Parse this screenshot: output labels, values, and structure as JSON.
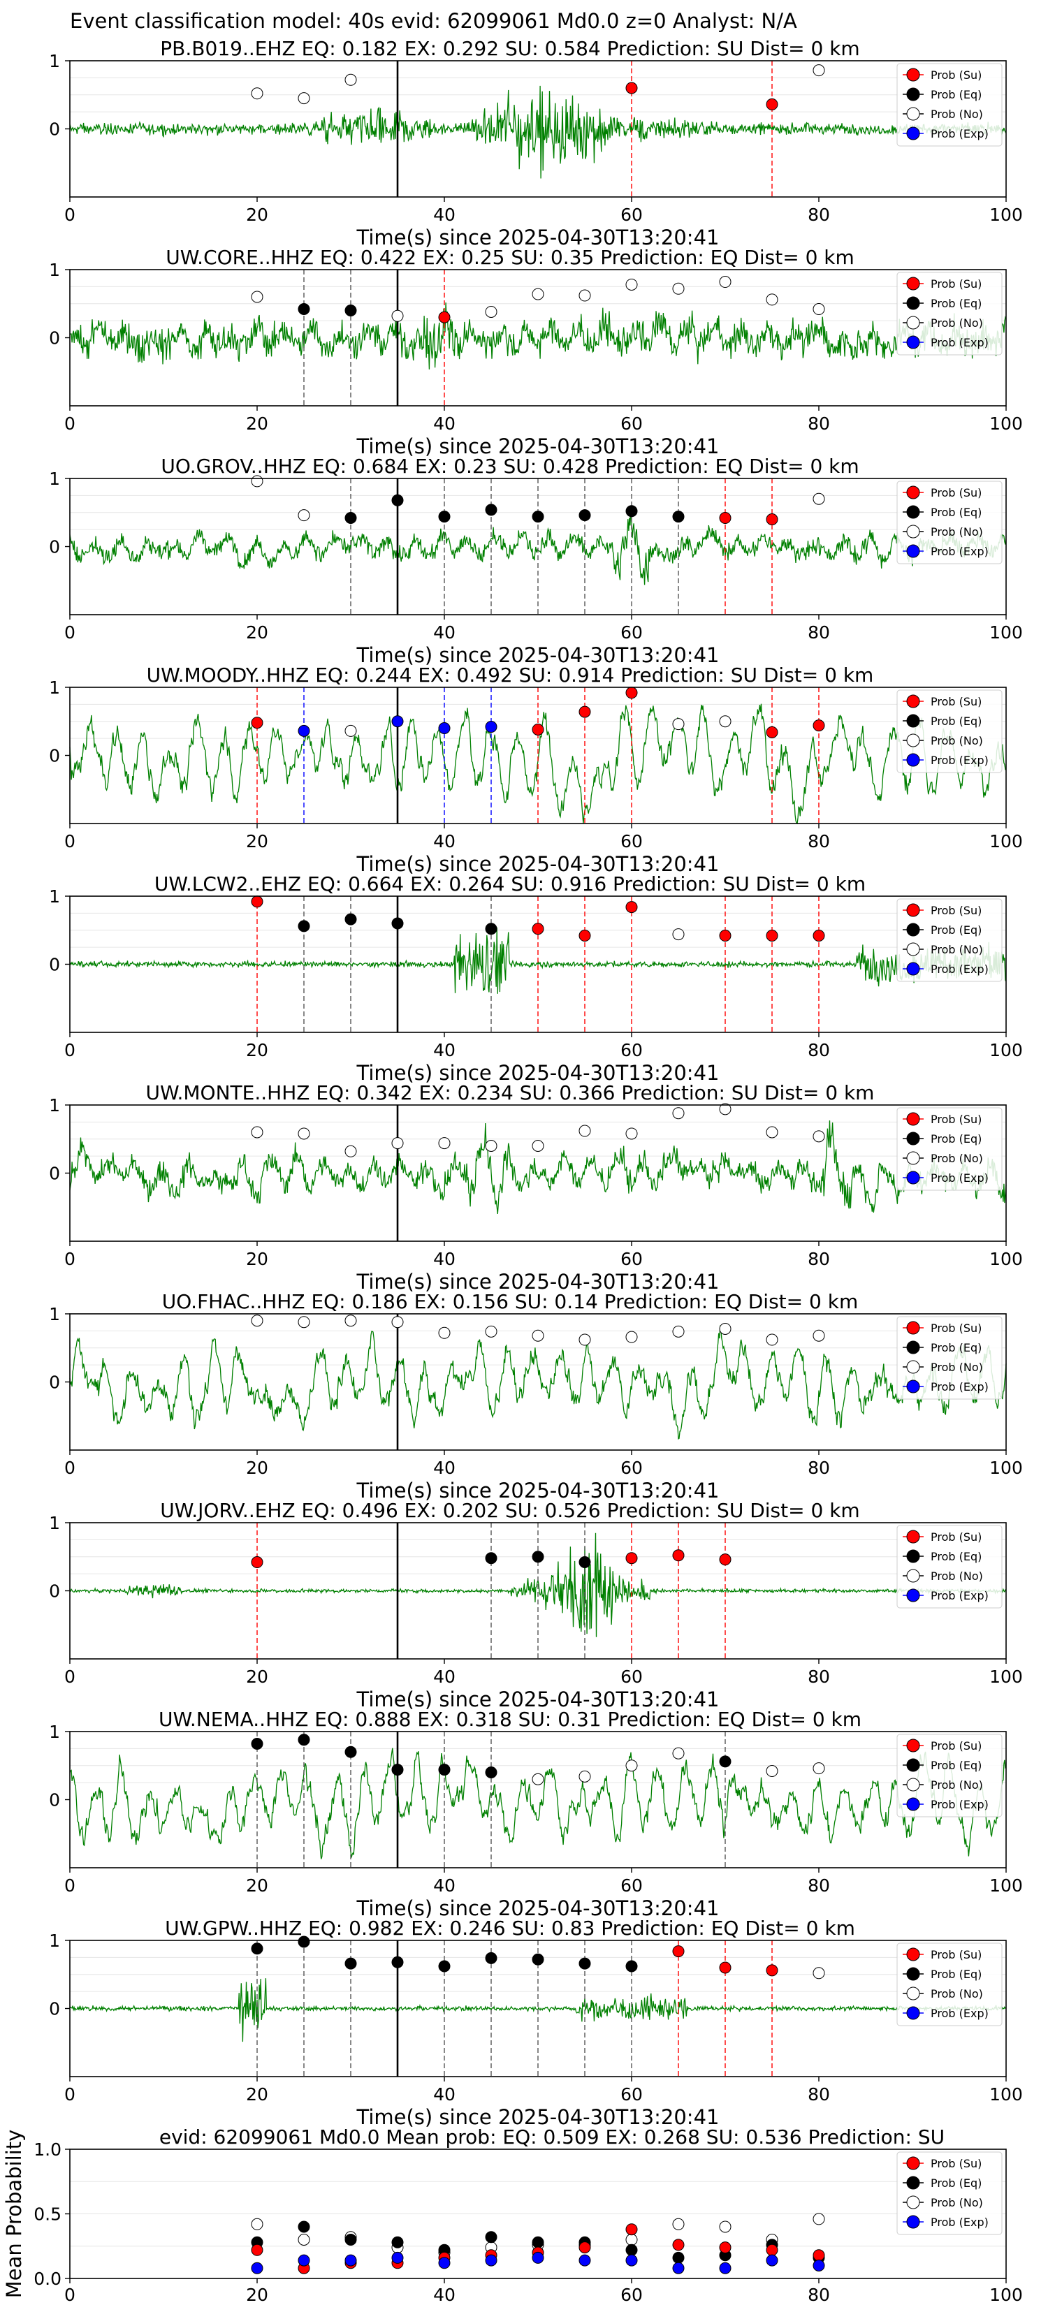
{
  "figure_title": "Event classification model: 40s evid: 62099061 Md0.0 z=0 Analyst: N/A",
  "colors": {
    "waveform": "#008000",
    "su": "#ff0000",
    "eq": "#000000",
    "no": "#ffffff",
    "exp": "#0000ff",
    "arrival": "#000000"
  },
  "legend": [
    "Prob (Su)",
    "Prob (Eq)",
    "Prob (No)",
    "Prob (Exp)"
  ],
  "chart_data": [
    {
      "type": "line+scatter",
      "title": "PB.B019..EHZ   EQ: 0.182  EX: 0.292  SU: 0.584   Prediction: SU    Dist= 0 km",
      "xlabel": "Time(s) since 2025-04-30T13:20:41",
      "xlim": [
        0,
        100
      ],
      "ylim": [
        -1,
        1
      ],
      "xticks": [
        "0",
        "20",
        "40",
        "60",
        "80",
        "100"
      ],
      "yticks": [
        "1",
        "0"
      ],
      "arrival_time": 35,
      "waveform": "high-frequency signal, amplitude ~0.15 rising from 25 s to bursts at ~36 s and 45-58 s (amplitude up to ~1.0), decaying after 60 s",
      "su": [
        [
          60,
          0.6
        ],
        [
          75,
          0.36
        ]
      ],
      "eq": [],
      "no": [
        [
          20,
          0.52
        ],
        [
          25,
          0.45
        ],
        [
          30,
          0.72
        ],
        [
          80,
          0.86
        ]
      ],
      "exp": [],
      "legend_loc": "upper right"
    },
    {
      "type": "line+scatter",
      "title": "UW.CORE..HHZ   EQ: 0.422  EX: 0.25  SU: 0.35   Prediction: EQ    Dist= 0 km",
      "xlabel": "Time(s) since 2025-04-30T13:20:41",
      "xlim": [
        0,
        100
      ],
      "ylim": [
        -1,
        1
      ],
      "xticks": [
        "0",
        "20",
        "40",
        "60",
        "80",
        "100"
      ],
      "yticks": [
        "1",
        "0"
      ],
      "arrival_time": 35,
      "waveform": "noisy broadband signal throughout, amplitude ~0.5",
      "su": [
        [
          40,
          0.3
        ]
      ],
      "eq": [
        [
          25,
          0.42
        ],
        [
          30,
          0.4
        ]
      ],
      "no": [
        [
          20,
          0.6
        ],
        [
          35,
          0.32
        ],
        [
          45,
          0.38
        ],
        [
          50,
          0.64
        ],
        [
          55,
          0.62
        ],
        [
          60,
          0.78
        ],
        [
          65,
          0.72
        ],
        [
          70,
          0.82
        ],
        [
          75,
          0.56
        ],
        [
          80,
          0.42
        ]
      ],
      "exp": [],
      "legend_loc": "upper right"
    },
    {
      "type": "line+scatter",
      "title": "UO.GROV..HHZ   EQ: 0.684  EX: 0.23  SU: 0.428   Prediction: EQ    Dist= 0 km",
      "xlabel": "Time(s) since 2025-04-30T13:20:41",
      "xlim": [
        0,
        100
      ],
      "ylim": [
        -1,
        1
      ],
      "xticks": [
        "0",
        "20",
        "40",
        "60",
        "80",
        "100"
      ],
      "yticks": [
        "1",
        "0"
      ],
      "arrival_time": 35,
      "waveform": "noisy signal, amplitude ~0.35, with larger spikes near 60 s",
      "su": [
        [
          70,
          0.42
        ],
        [
          75,
          0.4
        ]
      ],
      "eq": [
        [
          30,
          0.42
        ],
        [
          35,
          0.68
        ],
        [
          40,
          0.44
        ],
        [
          45,
          0.54
        ],
        [
          50,
          0.44
        ],
        [
          55,
          0.46
        ],
        [
          60,
          0.52
        ],
        [
          65,
          0.44
        ]
      ],
      "no": [
        [
          20,
          0.96
        ],
        [
          25,
          0.46
        ],
        [
          80,
          0.7
        ]
      ],
      "exp": [],
      "legend_loc": "upper right"
    },
    {
      "type": "line+scatter",
      "title": "UW.MOODY..HHZ   EQ: 0.244  EX: 0.492  SU: 0.914   Prediction: SU    Dist= 0 km",
      "xlabel": "Time(s) since 2025-04-30T13:20:41",
      "xlim": [
        0,
        100
      ],
      "ylim": [
        -1,
        1
      ],
      "xticks": [
        "0",
        "20",
        "40",
        "60",
        "80",
        "100"
      ],
      "yticks": [
        "1",
        "0"
      ],
      "arrival_time": 35,
      "waveform": "low-frequency oscillation, amplitude ~0.6, peaks near 1.0",
      "su": [
        [
          20,
          0.48
        ],
        [
          50,
          0.38
        ],
        [
          55,
          0.64
        ],
        [
          60,
          0.92
        ],
        [
          75,
          0.34
        ],
        [
          80,
          0.44
        ]
      ],
      "eq": [],
      "no": [
        [
          30,
          0.36
        ],
        [
          65,
          0.46
        ],
        [
          70,
          0.5
        ]
      ],
      "exp": [
        [
          25,
          0.36
        ],
        [
          35,
          0.5
        ],
        [
          40,
          0.4
        ],
        [
          45,
          0.42
        ]
      ],
      "legend_loc": "upper right"
    },
    {
      "type": "line+scatter",
      "title": "UW.LCW2..EHZ   EQ: 0.664  EX: 0.264  SU: 0.916   Prediction: SU    Dist= 0 km",
      "xlabel": "Time(s) since 2025-04-30T13:20:41",
      "xlim": [
        0,
        100
      ],
      "ylim": [
        -1,
        1
      ],
      "xticks": [
        "0",
        "20",
        "40",
        "60",
        "80",
        "100"
      ],
      "yticks": [
        "1",
        "0"
      ],
      "arrival_time": 35,
      "waveform": "low noise ~0.05 until 40 s, burst at 41-46 s, elevated amplitude after 85 s",
      "su": [
        [
          20,
          0.92
        ],
        [
          50,
          0.52
        ],
        [
          55,
          0.42
        ],
        [
          60,
          0.84
        ],
        [
          70,
          0.42
        ],
        [
          75,
          0.42
        ],
        [
          80,
          0.42
        ]
      ],
      "eq": [
        [
          25,
          0.56
        ],
        [
          30,
          0.66
        ],
        [
          35,
          0.6
        ],
        [
          45,
          0.52
        ]
      ],
      "no": [
        [
          65,
          0.44
        ]
      ],
      "exp": [],
      "legend_loc": "upper right"
    },
    {
      "type": "line+scatter",
      "title": "UW.MONTE..HHZ   EQ: 0.342  EX: 0.234  SU: 0.366   Prediction: SU    Dist= 0 km",
      "xlabel": "Time(s) since 2025-04-30T13:20:41",
      "xlim": [
        0,
        100
      ],
      "ylim": [
        -1,
        1
      ],
      "xticks": [
        "0",
        "20",
        "40",
        "60",
        "80",
        "100"
      ],
      "yticks": [
        "1",
        "0"
      ],
      "arrival_time": 35,
      "waveform": "noisy signal, amplitude ~0.5, spikes near 44 s and 82 s",
      "su": [],
      "eq": [],
      "no": [
        [
          20,
          0.6
        ],
        [
          25,
          0.58
        ],
        [
          30,
          0.32
        ],
        [
          35,
          0.44
        ],
        [
          40,
          0.44
        ],
        [
          45,
          0.4
        ],
        [
          50,
          0.4
        ],
        [
          55,
          0.62
        ],
        [
          60,
          0.58
        ],
        [
          65,
          0.88
        ],
        [
          70,
          0.94
        ],
        [
          75,
          0.6
        ],
        [
          80,
          0.54
        ]
      ],
      "exp": [],
      "legend_loc": "upper right"
    },
    {
      "type": "line+scatter",
      "title": "UO.FHAC..HHZ   EQ: 0.186  EX: 0.156  SU: 0.14   Prediction: EQ    Dist= 0 km",
      "xlabel": "Time(s) since 2025-04-30T13:20:41",
      "xlim": [
        0,
        100
      ],
      "ylim": [
        -1,
        1
      ],
      "xticks": [
        "0",
        "20",
        "40",
        "60",
        "80",
        "100"
      ],
      "yticks": [
        "1",
        "0"
      ],
      "arrival_time": 35,
      "waveform": "oscillating signal, amplitude ~0.6",
      "su": [],
      "eq": [],
      "no": [
        [
          20,
          0.9
        ],
        [
          25,
          0.88
        ],
        [
          30,
          0.9
        ],
        [
          35,
          0.88
        ],
        [
          40,
          0.72
        ],
        [
          45,
          0.74
        ],
        [
          50,
          0.68
        ],
        [
          55,
          0.62
        ],
        [
          60,
          0.66
        ],
        [
          65,
          0.74
        ],
        [
          70,
          0.78
        ],
        [
          75,
          0.62
        ],
        [
          80,
          0.68
        ]
      ],
      "exp": [],
      "legend_loc": "upper right"
    },
    {
      "type": "line+scatter",
      "title": "UW.JORV..EHZ   EQ: 0.496  EX: 0.202  SU: 0.526   Prediction: SU    Dist= 0 km",
      "xlabel": "Time(s) since 2025-04-30T13:20:41",
      "xlim": [
        0,
        100
      ],
      "ylim": [
        -1,
        1
      ],
      "xticks": [
        "0",
        "20",
        "40",
        "60",
        "80",
        "100"
      ],
      "yticks": [
        "1",
        "0"
      ],
      "arrival_time": 35,
      "waveform": "quiet, small event near 8-10 s, large event 48-60 s peaking ~1.0 at 55 s",
      "su": [
        [
          20,
          0.42
        ],
        [
          60,
          0.48
        ],
        [
          65,
          0.52
        ],
        [
          70,
          0.46
        ]
      ],
      "eq": [
        [
          45,
          0.48
        ],
        [
          50,
          0.5
        ],
        [
          55,
          0.42
        ]
      ],
      "no": [],
      "exp": [],
      "legend_loc": "upper right"
    },
    {
      "type": "line+scatter",
      "title": "UW.NEMA..HHZ   EQ: 0.888  EX: 0.318  SU: 0.31   Prediction: EQ    Dist= 0 km",
      "xlabel": "Time(s) since 2025-04-30T13:20:41",
      "xlim": [
        0,
        100
      ],
      "ylim": [
        -1,
        1
      ],
      "xticks": [
        "0",
        "20",
        "40",
        "60",
        "80",
        "100"
      ],
      "yticks": [
        "1",
        "0"
      ],
      "arrival_time": 35,
      "waveform": "low-frequency oscillation, amplitude ~0.6",
      "su": [],
      "eq": [
        [
          20,
          0.82
        ],
        [
          25,
          0.88
        ],
        [
          30,
          0.7
        ],
        [
          35,
          0.44
        ],
        [
          40,
          0.44
        ],
        [
          45,
          0.4
        ],
        [
          70,
          0.56
        ]
      ],
      "no": [
        [
          50,
          0.3
        ],
        [
          55,
          0.34
        ],
        [
          60,
          0.5
        ],
        [
          65,
          0.68
        ],
        [
          75,
          0.42
        ],
        [
          80,
          0.46
        ]
      ],
      "exp": [],
      "legend_loc": "upper right"
    },
    {
      "type": "line+scatter",
      "title": "UW.GPW..HHZ   EQ: 0.982  EX: 0.246  SU: 0.83   Prediction: EQ    Dist= 0 km",
      "xlabel": "Time(s) since 2025-04-30T13:20:41",
      "xlim": [
        0,
        100
      ],
      "ylim": [
        -1,
        1
      ],
      "xticks": [
        "0",
        "20",
        "40",
        "60",
        "80",
        "100"
      ],
      "yticks": [
        "1",
        "0"
      ],
      "arrival_time": 35,
      "waveform": "low noise ~0.05, burst at 18-20 s, second burst 55-65 s",
      "su": [
        [
          65,
          0.84
        ],
        [
          70,
          0.6
        ],
        [
          75,
          0.56
        ]
      ],
      "eq": [
        [
          20,
          0.88
        ],
        [
          25,
          0.98
        ],
        [
          30,
          0.66
        ],
        [
          35,
          0.68
        ],
        [
          40,
          0.62
        ],
        [
          45,
          0.74
        ],
        [
          50,
          0.72
        ],
        [
          55,
          0.66
        ],
        [
          60,
          0.62
        ]
      ],
      "no": [
        [
          80,
          0.52
        ]
      ],
      "exp": [],
      "legend_loc": "upper right"
    },
    {
      "type": "scatter",
      "title": "evid: 62099061  Md0.0   Mean prob:   EQ: 0.509  EX: 0.268  SU: 0.536   Prediction: SU",
      "xlabel": "",
      "ylabel": "Mean Probability",
      "xlim": [
        0,
        100
      ],
      "ylim": [
        0,
        1
      ],
      "xticks": [
        "0",
        "20",
        "40",
        "60",
        "80",
        "100"
      ],
      "yticks": [
        "1.0",
        "0.5",
        "0.0"
      ],
      "x": [
        20,
        25,
        30,
        35,
        40,
        45,
        50,
        55,
        60,
        65,
        70,
        75,
        80
      ],
      "su": [
        0.22,
        0.08,
        0.12,
        0.12,
        0.16,
        0.18,
        0.2,
        0.24,
        0.38,
        0.26,
        0.24,
        0.22,
        0.18
      ],
      "eq": [
        0.28,
        0.4,
        0.3,
        0.28,
        0.22,
        0.32,
        0.28,
        0.28,
        0.22,
        0.16,
        0.18,
        0.26,
        0.16
      ],
      "no": [
        0.42,
        0.3,
        0.32,
        0.24,
        0.2,
        0.24,
        0.26,
        0.26,
        0.3,
        0.42,
        0.4,
        0.3,
        0.46
      ],
      "exp": [
        0.08,
        0.14,
        0.14,
        0.16,
        0.12,
        0.14,
        0.16,
        0.14,
        0.14,
        0.08,
        0.08,
        0.14,
        0.1
      ],
      "legend_loc": "upper right"
    }
  ]
}
